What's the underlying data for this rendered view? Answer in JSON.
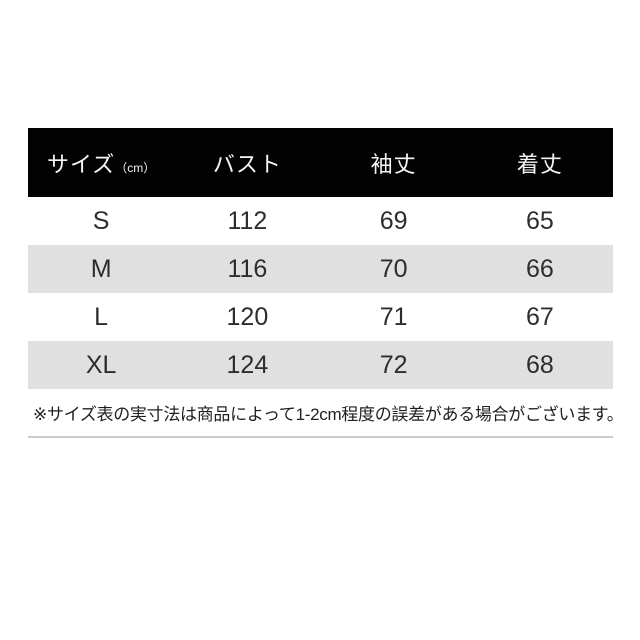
{
  "colors": {
    "header_bg": "#020202",
    "header_text": "#f5f5f5",
    "row_bg": "#ffffff",
    "row_alt_bg": "#e0e0e0",
    "body_text": "#2d2d2d",
    "note_text": "#1f1f1f",
    "divider": "#cccccc"
  },
  "header": {
    "size_label": "サイズ",
    "size_unit": "（cm）",
    "bust": "バスト",
    "sleeve": "袖丈",
    "length": "着丈"
  },
  "chart_data": {
    "type": "table",
    "title": "",
    "columns": [
      "サイズ（cm）",
      "バスト",
      "袖丈",
      "着丈"
    ],
    "rows": [
      [
        "S",
        "112",
        "69",
        "65"
      ],
      [
        "M",
        "116",
        "70",
        "66"
      ],
      [
        "L",
        "120",
        "71",
        "67"
      ],
      [
        "XL",
        "124",
        "72",
        "68"
      ]
    ],
    "note": "※サイズ表の実寸法は商品によって1-2cm程度の誤差がある場合がございます。",
    "layout_hints": {
      "header_style": "black-background-white-text",
      "zebra_striping": "rows M and XL shaded light gray",
      "note_position": "below table, left-aligned, bottom divider line"
    }
  }
}
